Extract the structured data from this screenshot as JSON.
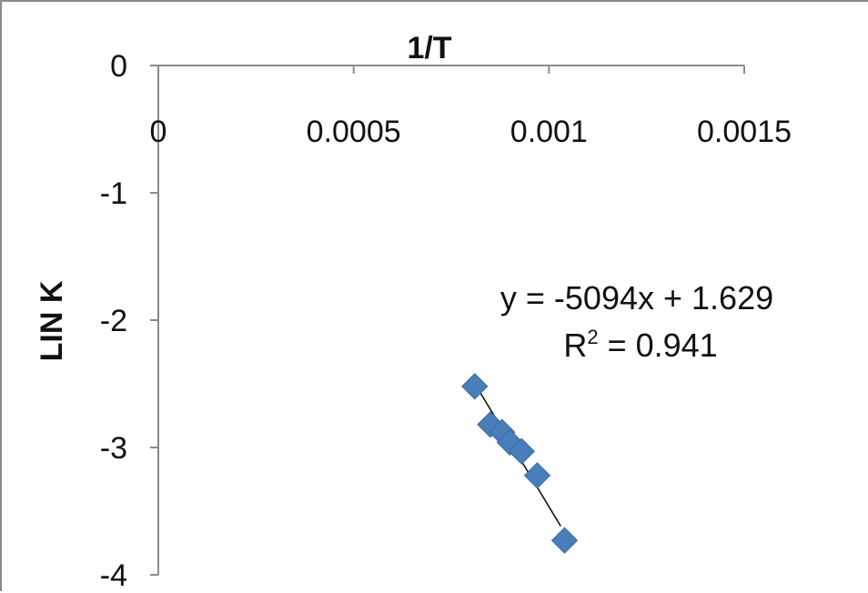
{
  "chart_data": {
    "type": "scatter",
    "title": "",
    "xlabel": "1/T",
    "ylabel": "LIN K",
    "xlim": [
      0,
      0.0015
    ],
    "ylim": [
      -4,
      0
    ],
    "x_ticks": [
      "0",
      "0.0005",
      "0.001",
      "0.0015"
    ],
    "y_ticks": [
      "0",
      "-1",
      "-2",
      "-3",
      "-4"
    ],
    "x_axis_position": "top",
    "grid": false,
    "legend": "none",
    "marker_color": "#4a7ebb",
    "trendline_color": "#111111",
    "series": [
      {
        "x": [
          0.00081,
          0.00085,
          0.00088,
          0.0009,
          0.00093,
          0.00097,
          0.00104
        ],
        "y": [
          -2.52,
          -2.82,
          -2.88,
          -2.96,
          -3.03,
          -3.22,
          -3.73
        ]
      }
    ],
    "trendline": {
      "slope": -5094,
      "intercept": 1.629,
      "x_range": [
        0.00082,
        0.00103
      ],
      "equation_label": "y = -5094x + 1.629",
      "r2_label_prefix": "R",
      "r2_label_sup": "2",
      "r2_label_suffix": " = 0.941"
    }
  }
}
